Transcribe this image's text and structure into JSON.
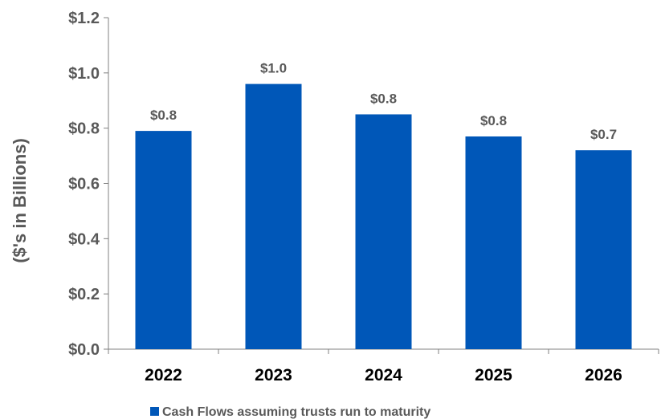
{
  "chart_data": {
    "type": "bar",
    "categories": [
      "2022",
      "2023",
      "2024",
      "2025",
      "2026"
    ],
    "values": [
      0.79,
      0.96,
      0.85,
      0.77,
      0.72
    ],
    "data_labels": [
      "$0.8",
      "$1.0",
      "$0.8",
      "$0.8",
      "$0.7"
    ],
    "ylabel": "($'s in Billions)",
    "ylim": [
      0,
      1.2
    ],
    "yticks": [
      0,
      0.2,
      0.4,
      0.6,
      0.8,
      1.0,
      1.2
    ],
    "ytick_labels": [
      "$0.0",
      "$0.2",
      "$0.4",
      "$0.6",
      "$0.8",
      "$1.0",
      "$1.2"
    ],
    "grid": false,
    "legend": {
      "position": "bottom",
      "entries": [
        {
          "label": "Cash Flows assuming trusts run to maturity",
          "color": "#0057B8"
        }
      ]
    },
    "colors": {
      "bar": "#0057B8",
      "axis": "#808080"
    }
  }
}
